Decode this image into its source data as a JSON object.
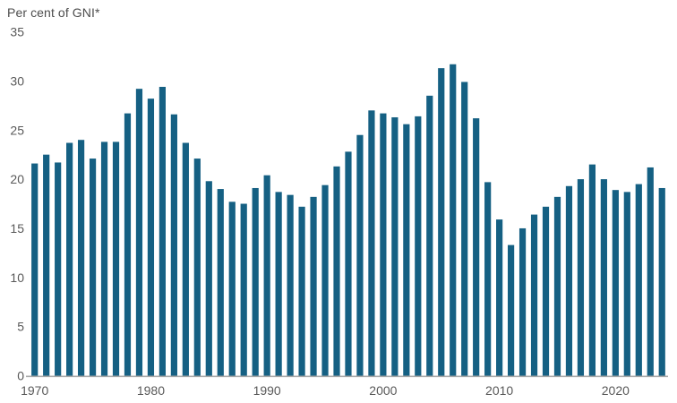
{
  "header": {
    "title": "Per cent of GNI*"
  },
  "chart_data": {
    "type": "bar",
    "title": "Per cent of GNI*",
    "xlabel": "",
    "ylabel": "Per cent of GNI*",
    "categories": [
      1970,
      1971,
      1972,
      1973,
      1974,
      1975,
      1976,
      1977,
      1978,
      1979,
      1980,
      1981,
      1982,
      1983,
      1984,
      1985,
      1986,
      1987,
      1988,
      1989,
      1990,
      1991,
      1992,
      1993,
      1994,
      1995,
      1996,
      1997,
      1998,
      1999,
      2000,
      2001,
      2002,
      2003,
      2004,
      2005,
      2006,
      2007,
      2008,
      2009,
      2010,
      2011,
      2012,
      2013,
      2014,
      2015,
      2016,
      2017,
      2018,
      2019,
      2020,
      2021,
      2022,
      2023,
      2024
    ],
    "values": [
      21.6,
      22.5,
      21.7,
      23.7,
      24.0,
      22.1,
      23.8,
      23.8,
      26.7,
      29.2,
      28.2,
      29.4,
      26.6,
      23.7,
      22.1,
      19.8,
      19.0,
      17.7,
      17.5,
      19.1,
      20.4,
      18.7,
      18.4,
      17.2,
      18.2,
      19.4,
      21.3,
      22.8,
      24.5,
      27.0,
      26.7,
      26.3,
      25.6,
      26.4,
      28.5,
      31.3,
      31.7,
      29.9,
      26.2,
      19.7,
      15.9,
      13.3,
      15.0,
      16.4,
      17.2,
      18.2,
      19.3,
      20.0,
      21.5,
      20.0,
      18.9,
      18.7,
      19.5,
      21.2,
      19.1
    ],
    "ylim": [
      0,
      35
    ],
    "yticks": [
      0,
      5,
      10,
      15,
      20,
      25,
      30,
      35
    ],
    "xticks": [
      1970,
      1980,
      1990,
      2000,
      2010,
      2020
    ],
    "grid": false,
    "legend": false,
    "colors": {
      "bar": "#156083",
      "axis_line": "#a8a8a8",
      "title_text": "#4d4d4d",
      "tick_text": "#595959",
      "background": "#ffffff"
    }
  }
}
